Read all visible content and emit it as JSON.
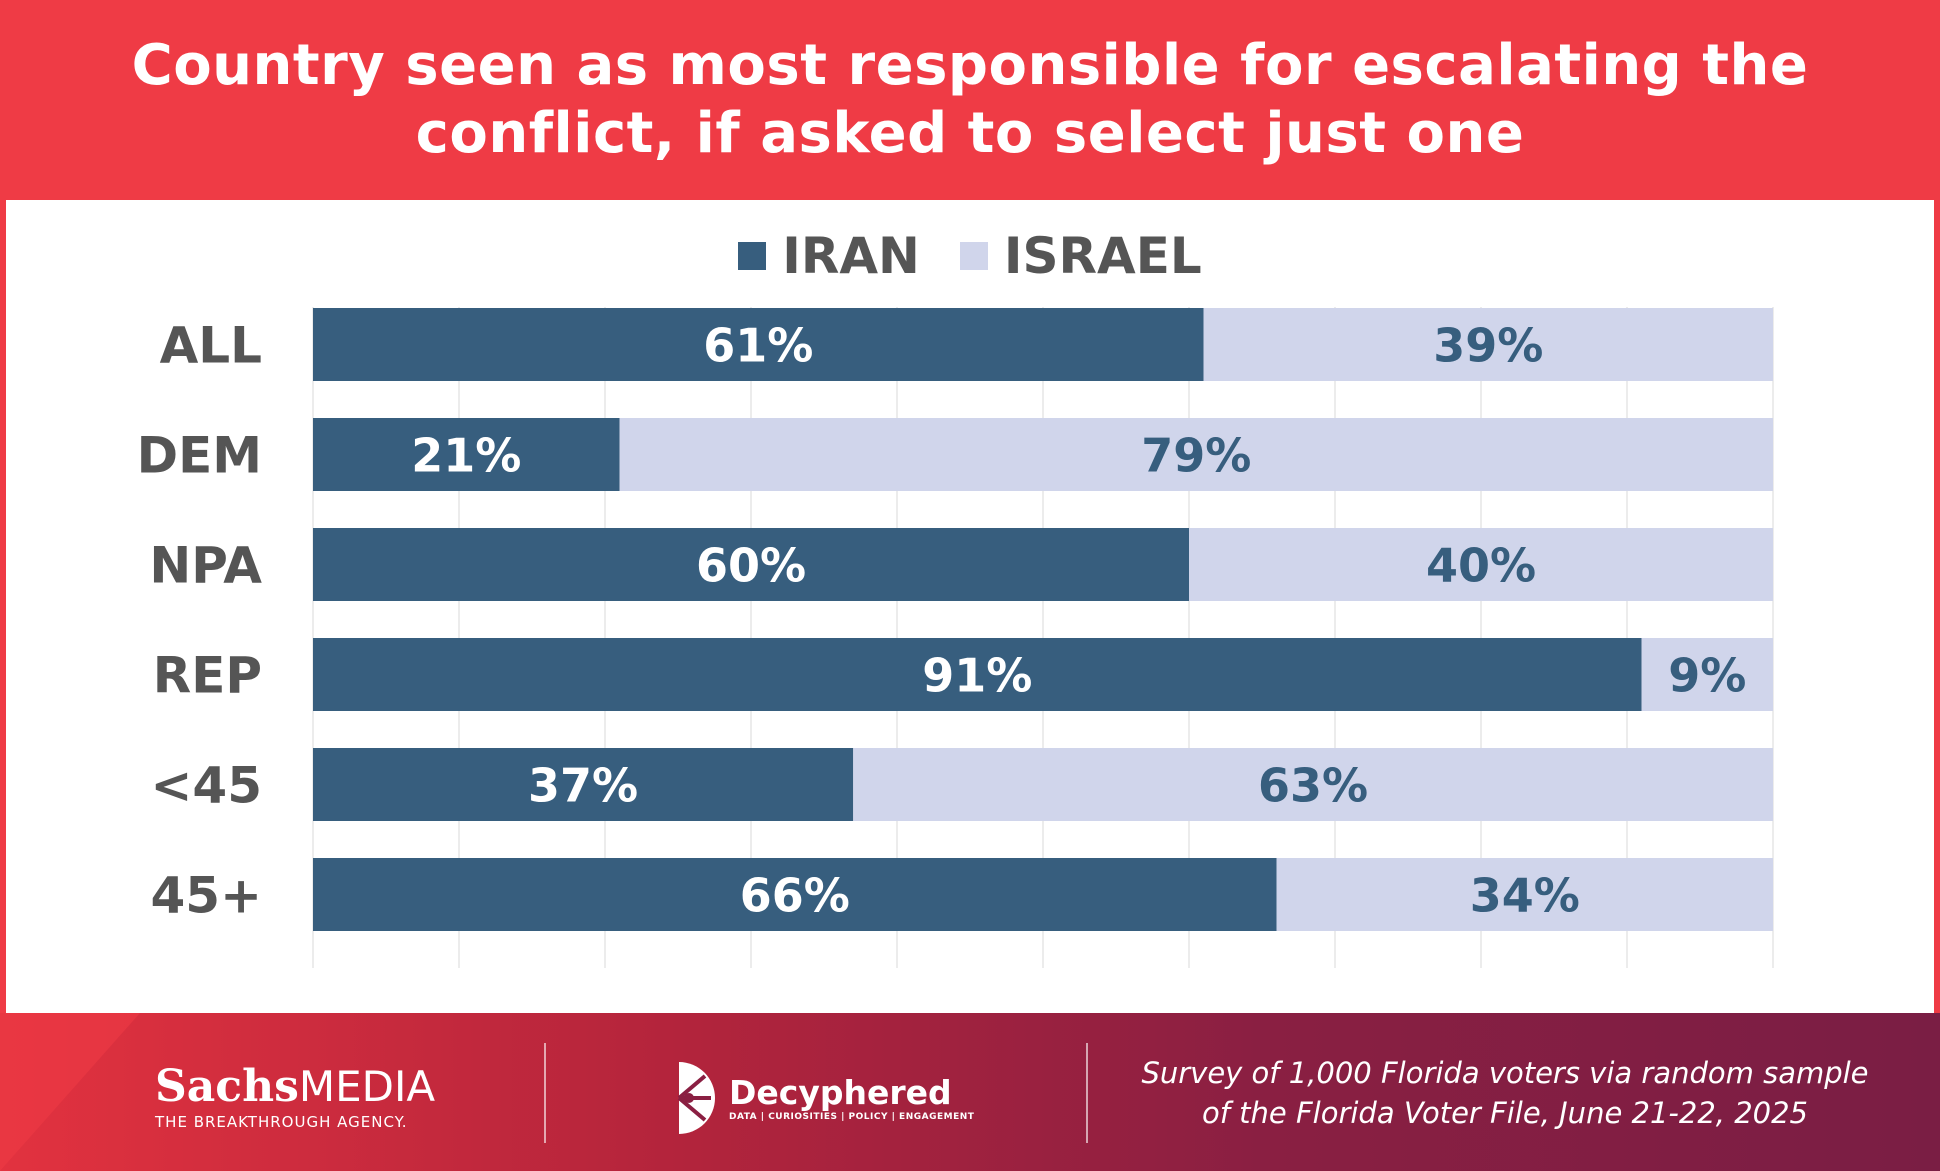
{
  "header": {
    "title": "Country seen as most responsible for escalating the conflict, if asked to select just one"
  },
  "legend": [
    {
      "label": "IRAN",
      "color": "#375e7e"
    },
    {
      "label": "ISRAEL",
      "color": "#d0d5eb"
    }
  ],
  "chart_data": {
    "type": "bar",
    "orientation": "horizontal",
    "stacked": true,
    "title": "Country seen as most responsible for escalating the conflict, if asked to select just one",
    "categories": [
      "ALL",
      "DEM",
      "NPA",
      "REP",
      "<45",
      "45+"
    ],
    "series": [
      {
        "name": "IRAN",
        "values": [
          61,
          21,
          60,
          91,
          37,
          66
        ],
        "labels": [
          "61%",
          "21%",
          "60%",
          "91%",
          "37%",
          "66%"
        ],
        "color": "#375e7e",
        "label_color": "#ffffff"
      },
      {
        "name": "ISRAEL",
        "values": [
          39,
          79,
          40,
          9,
          63,
          34
        ],
        "labels": [
          "39%",
          "79%",
          "40%",
          "9%",
          "63%",
          "34%"
        ],
        "color": "#d0d5eb",
        "label_color": "#375e7e"
      }
    ],
    "xlim": [
      0,
      100
    ],
    "grid": true,
    "legend_position": "top-center",
    "xlabel": "",
    "ylabel": ""
  },
  "footer": {
    "brand1": {
      "name_bold": "Sachs",
      "name_light": "MEDIA",
      "tagline": "THE BREAKTHROUGH AGENCY."
    },
    "brand2": {
      "name": "Decyphered",
      "tagline": "DATA | CURIOSITIES | POLICY | ENGAGEMENT"
    },
    "source_line1": "Survey of 1,000 Florida voters via random sample",
    "source_line2": "of the Florida Voter File, June 21-22, 2025"
  }
}
